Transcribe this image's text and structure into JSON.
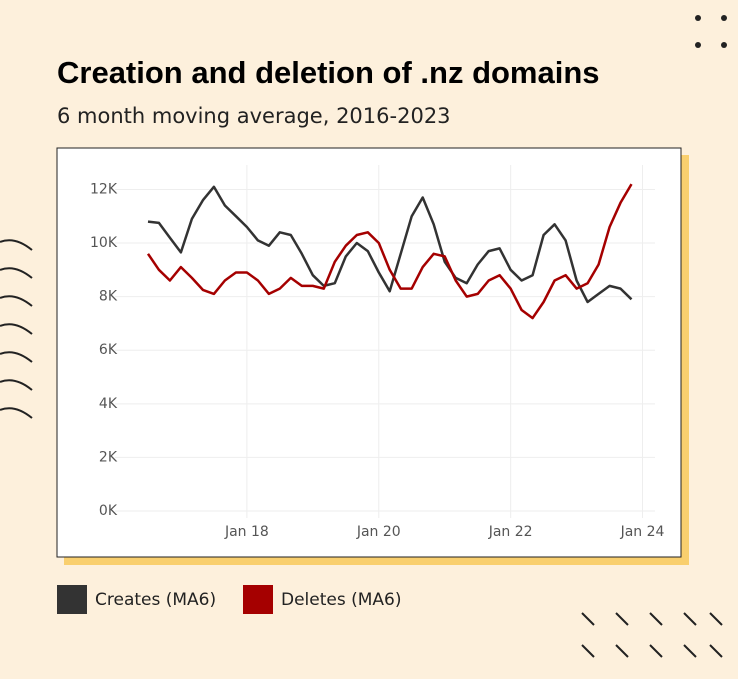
{
  "chart_data": {
    "type": "line",
    "title": "Creation and deletion of .nz domains",
    "subtitle": "6 month moving average, 2016-2023",
    "x": [
      "2016-07",
      "2016-09",
      "2016-11",
      "2017-01",
      "2017-03",
      "2017-05",
      "2017-07",
      "2017-09",
      "2017-11",
      "2018-01",
      "2018-03",
      "2018-05",
      "2018-07",
      "2018-09",
      "2018-11",
      "2019-01",
      "2019-03",
      "2019-05",
      "2019-07",
      "2019-09",
      "2019-11",
      "2020-01",
      "2020-03",
      "2020-05",
      "2020-07",
      "2020-09",
      "2020-11",
      "2021-01",
      "2021-03",
      "2021-05",
      "2021-07",
      "2021-09",
      "2021-11",
      "2022-01",
      "2022-03",
      "2022-05",
      "2022-07",
      "2022-09",
      "2022-11",
      "2023-01",
      "2023-03",
      "2023-05",
      "2023-07",
      "2023-09",
      "2023-11"
    ],
    "series": [
      {
        "name": "Creates (MA6)",
        "color": "#333333",
        "values": [
          10800,
          10750,
          10200,
          9650,
          10900,
          11600,
          12100,
          11400,
          11000,
          10600,
          10100,
          9900,
          10400,
          10300,
          9600,
          8800,
          8400,
          8500,
          9500,
          10000,
          9700,
          8900,
          8200,
          9600,
          11000,
          11700,
          10700,
          9300,
          8700,
          8500,
          9200,
          9700,
          9800,
          9000,
          8600,
          8800,
          10300,
          10700,
          10100,
          8600,
          7800,
          8100,
          8400,
          8300,
          7900
        ]
      },
      {
        "name": "Deletes (MA6)",
        "color": "#a50000",
        "values": [
          9600,
          9000,
          8600,
          9100,
          8700,
          8250,
          8100,
          8600,
          8900,
          8900,
          8600,
          8100,
          8300,
          8700,
          8400,
          8400,
          8300,
          9300,
          9900,
          10300,
          10400,
          10000,
          9000,
          8300,
          8300,
          9100,
          9600,
          9500,
          8600,
          8000,
          8100,
          8600,
          8800,
          8300,
          7500,
          7200,
          7800,
          8600,
          8800,
          8300,
          8500,
          9200,
          10600,
          11500,
          12200
        ]
      }
    ],
    "xlim": [
      "2015-10",
      "2024-06"
    ],
    "xticks": [
      {
        "value": "2018-01",
        "label": "Jan 18"
      },
      {
        "value": "2020-01",
        "label": "Jan 20"
      },
      {
        "value": "2022-01",
        "label": "Jan 22"
      },
      {
        "value": "2024-01",
        "label": "Jan 24"
      }
    ],
    "ylim": [
      0,
      12800
    ],
    "yticks": [
      {
        "value": 0,
        "label": "0K"
      },
      {
        "value": 2000,
        "label": "2K"
      },
      {
        "value": 4000,
        "label": "4K"
      },
      {
        "value": 6000,
        "label": "6K"
      },
      {
        "value": 8000,
        "label": "8K"
      },
      {
        "value": 10000,
        "label": "10K"
      },
      {
        "value": 12000,
        "label": "12K"
      }
    ],
    "grid": true
  }
}
